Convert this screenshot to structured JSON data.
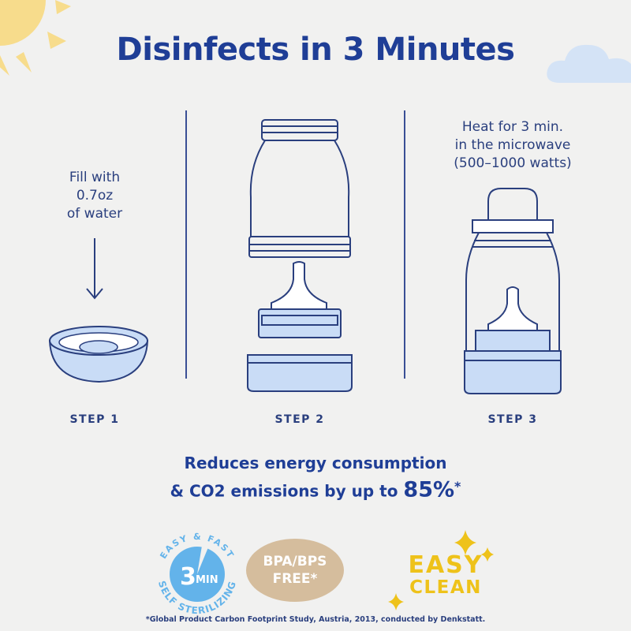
{
  "title": "Disinfects in 3 Minutes",
  "steps": [
    {
      "label": "STEP 1",
      "caption_lines": [
        "Fill with",
        "0.7oz",
        "of water"
      ]
    },
    {
      "label": "STEP 2",
      "caption_lines": []
    },
    {
      "label": "STEP 3",
      "caption_lines": [
        "Heat for 3 min.",
        "in the microwave",
        "(500–1000 watts)"
      ]
    }
  ],
  "claim": {
    "line1": "Reduces energy consumption",
    "line2_prefix": "& CO2 emissions by up to ",
    "percent": "85%",
    "mark": "*"
  },
  "badges": {
    "sterilizing": {
      "number": "3",
      "unit": "MIN",
      "ring_top": "EASY & FAST",
      "ring_bottom": "SELF STERILIZING"
    },
    "bpa": {
      "line1": "BPA/BPS",
      "line2": "FREE*"
    },
    "easy_clean": {
      "line1": "EASY",
      "line2": "CLEAN"
    }
  },
  "footnote": "*Global Product Carbon Footprint Study, Austria, 2013, conducted by Denkstatt.",
  "colors": {
    "navy": "#1f3e96",
    "light_blue": "#c9dcf6",
    "sun": "#f7dc8c",
    "badge_blue": "#63b3ea",
    "tan": "#d5bd9d",
    "gold": "#eec21a"
  }
}
